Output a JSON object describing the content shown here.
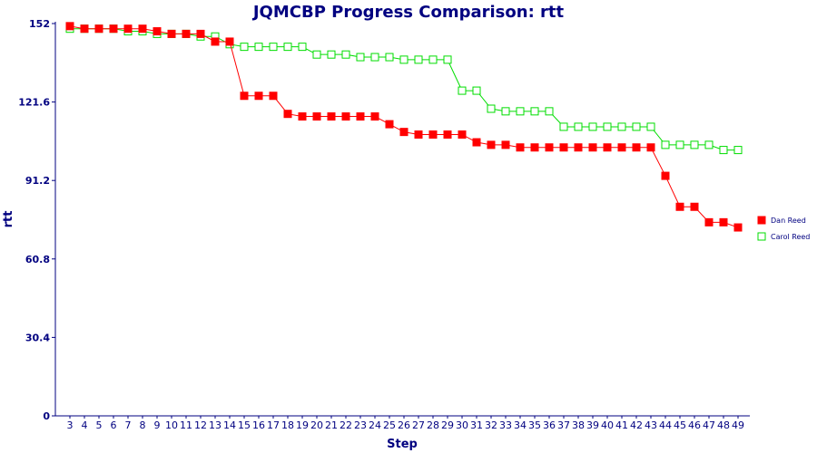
{
  "chart_data": {
    "type": "line",
    "title": "JQMCBP Progress Comparison: rtt",
    "xlabel": "Step",
    "ylabel": "rtt",
    "ylim": [
      0,
      152
    ],
    "yticks": [
      "0",
      "30.4",
      "60.8",
      "91.2",
      "121.6",
      "152"
    ],
    "x": [
      3,
      4,
      5,
      6,
      7,
      8,
      9,
      10,
      11,
      12,
      13,
      14,
      15,
      16,
      17,
      18,
      19,
      20,
      21,
      22,
      23,
      24,
      25,
      26,
      27,
      28,
      29,
      30,
      31,
      32,
      33,
      34,
      35,
      36,
      37,
      38,
      39,
      40,
      41,
      42,
      43,
      44,
      45,
      46,
      47,
      48,
      49
    ],
    "grid": false,
    "legend_position": "right",
    "series": [
      {
        "name": "Dan Reed",
        "color": "#ff0000",
        "marker": "filled-square",
        "values": [
          151,
          150,
          150,
          150,
          150,
          150,
          149,
          148,
          148,
          148,
          145,
          145,
          124,
          124,
          124,
          117,
          116,
          116,
          116,
          116,
          116,
          116,
          113,
          110,
          109,
          109,
          109,
          109,
          106,
          105,
          105,
          104,
          104,
          104,
          104,
          104,
          104,
          104,
          104,
          104,
          104,
          93,
          81,
          81,
          75,
          75,
          73
        ]
      },
      {
        "name": "Carol Reed",
        "color": "#00dd00",
        "marker": "hollow-square",
        "values": [
          150,
          150,
          150,
          150,
          149,
          149,
          148,
          148,
          148,
          147,
          147,
          144,
          143,
          143,
          143,
          143,
          143,
          140,
          140,
          140,
          139,
          139,
          139,
          138,
          138,
          138,
          138,
          126,
          126,
          119,
          118,
          118,
          118,
          118,
          112,
          112,
          112,
          112,
          112,
          112,
          112,
          105,
          105,
          105,
          105,
          103,
          103
        ]
      }
    ]
  }
}
